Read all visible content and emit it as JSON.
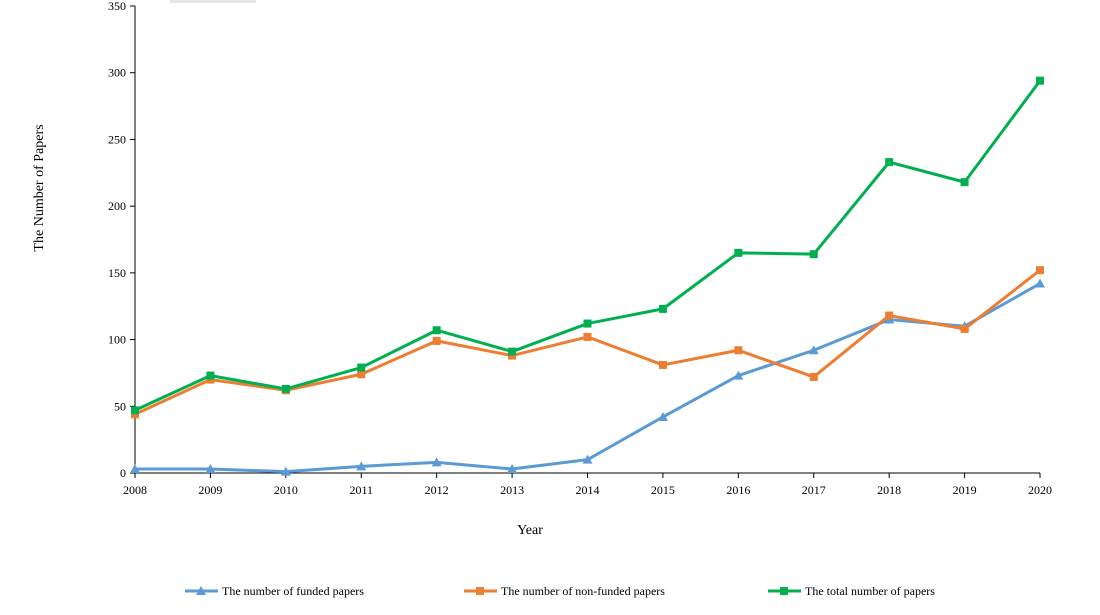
{
  "chart_data": {
    "type": "line",
    "title": "",
    "xlabel": "Year",
    "ylabel": "The Number of Papers",
    "ylim": [
      0,
      350
    ],
    "yticks": [
      0,
      50,
      100,
      150,
      200,
      250,
      300,
      350
    ],
    "x": [
      "2008",
      "2009",
      "2010",
      "2011",
      "2012",
      "2013",
      "2014",
      "2015",
      "2016",
      "2017",
      "2018",
      "2019",
      "2020"
    ],
    "grid": false,
    "legend_position": "bottom",
    "series": [
      {
        "name": "The number of funded papers",
        "color": "#5B9BD5",
        "marker": "triangle",
        "values": [
          3,
          3,
          1,
          5,
          8,
          3,
          10,
          42,
          73,
          92,
          115,
          110,
          142
        ]
      },
      {
        "name": "The number of non-funded papers",
        "color": "#ED7D31",
        "marker": "square",
        "values": [
          44,
          70,
          62,
          74,
          99,
          88,
          102,
          81,
          92,
          72,
          118,
          108,
          152
        ]
      },
      {
        "name": "The total number of papers",
        "color": "#00B050",
        "marker": "square",
        "values": [
          47,
          73,
          63,
          79,
          107,
          91,
          112,
          123,
          165,
          164,
          233,
          218,
          294
        ]
      }
    ]
  }
}
